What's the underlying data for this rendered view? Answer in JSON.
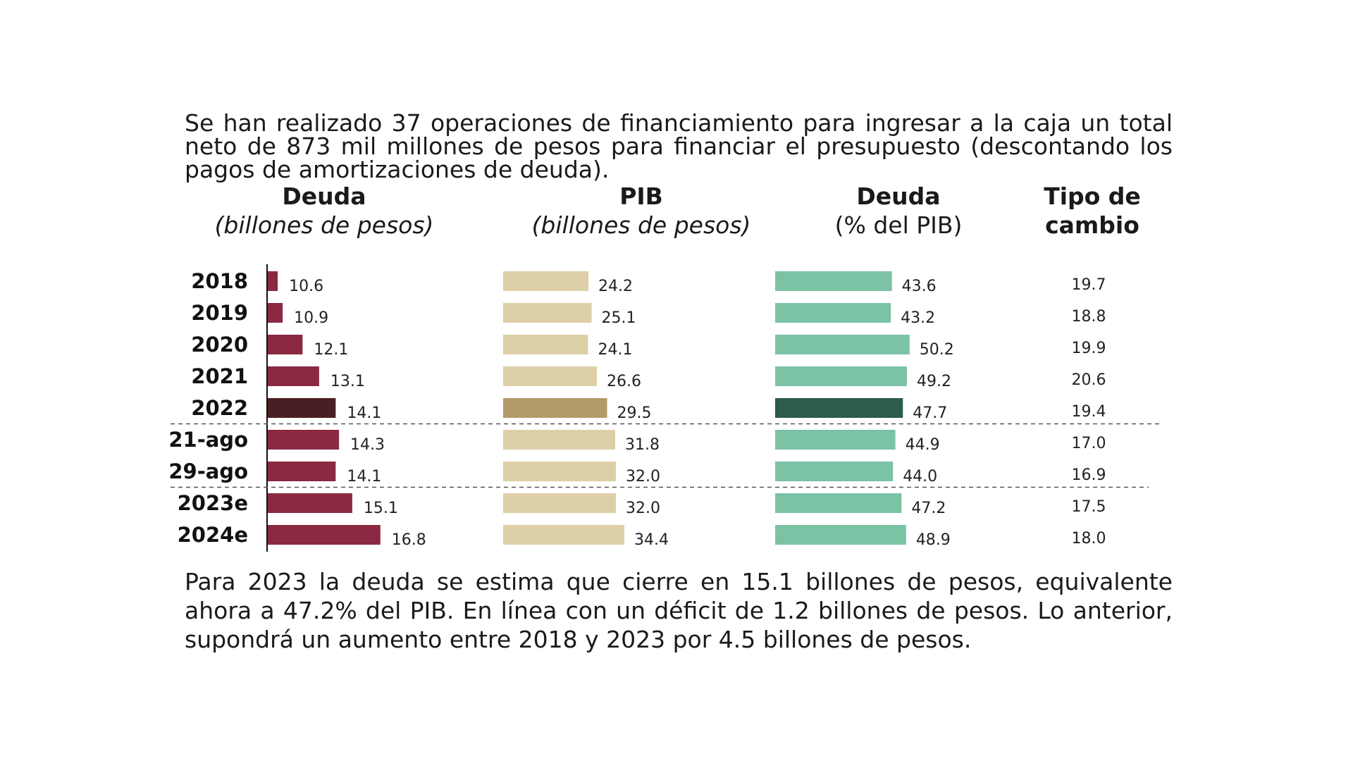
{
  "intro_text": "Se han realizado 37 operaciones de financiamiento para ingresar a la caja un total neto de 873 mil millones de pesos para financiar el presupuesto (descontando los pagos de amortizaciones de deuda).",
  "outro_text": "Para 2023 la deuda se estima que cierre en 15.1 billones de pesos, equivalente ahora a 47.2% del PIB. En línea con un déficit de 1.2 billones de pesos. Lo anterior, supondrá un aumento entre 2018 y 2023 por 4.5 billones de pesos.",
  "headers": {
    "deuda": {
      "title": "Deuda",
      "subtitle": "(billones de pesos)"
    },
    "pib": {
      "title": "PIB",
      "subtitle": "(billones de pesos)"
    },
    "deuda_pib": {
      "title": "Deuda",
      "subtitle": "(% del PIB)"
    },
    "tipo_cambio": {
      "title_line1": "Tipo de",
      "title_line2": "cambio"
    }
  },
  "chart_data": {
    "type": "bar",
    "orientation": "horizontal",
    "categories": [
      "2018",
      "2019",
      "2020",
      "2021",
      "2022",
      "21-ago",
      "29-ago",
      "2023e",
      "2024e"
    ],
    "highlight_index": 4,
    "separators_after": [
      4,
      6
    ],
    "series": [
      {
        "key": "deuda",
        "values": [
          10.6,
          10.9,
          12.1,
          13.1,
          14.1,
          14.3,
          14.1,
          15.1,
          16.8
        ],
        "color": "#8b2942",
        "highlight_color": "#4a1f24",
        "baseline": 10.0,
        "axis_line": true
      },
      {
        "key": "pib",
        "values": [
          24.2,
          25.1,
          24.1,
          26.6,
          29.5,
          31.8,
          32.0,
          32.0,
          34.4
        ],
        "color": "#ddd0a8",
        "highlight_color": "#b39a69",
        "baseline": 0
      },
      {
        "key": "deuda_pib",
        "values": [
          43.6,
          43.2,
          50.2,
          49.2,
          47.7,
          44.9,
          44.0,
          47.2,
          48.9
        ],
        "color": "#7cc2a5",
        "highlight_color": "#2c5c4a",
        "baseline": 0
      }
    ],
    "tipo_de_cambio": [
      19.7,
      18.8,
      19.9,
      20.6,
      19.4,
      17.0,
      16.9,
      17.5,
      18.0
    ]
  }
}
